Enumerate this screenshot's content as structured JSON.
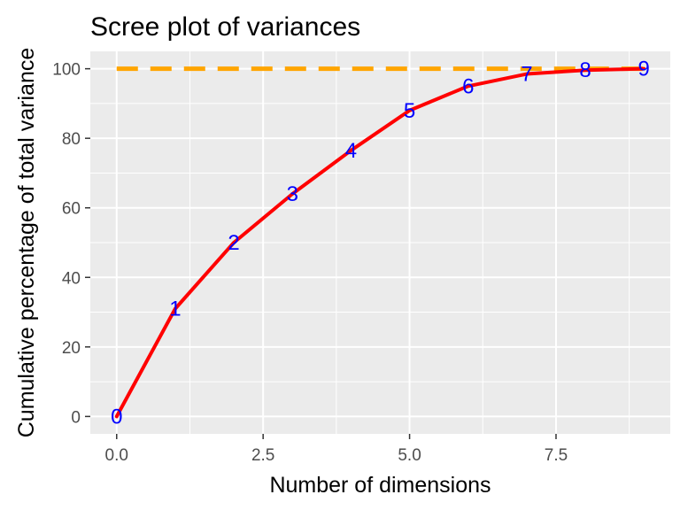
{
  "chart_data": {
    "type": "line",
    "title": "Scree plot of variances",
    "xlabel": "Number of dimensions",
    "ylabel": "Cumulative percentage of total variance",
    "xlim": [
      -0.45,
      9.45
    ],
    "ylim": [
      -5,
      105
    ],
    "x_ticks": [
      0,
      2.5,
      5,
      7.5
    ],
    "x_tick_labels": [
      "0.0",
      "2.5",
      "5.0",
      "7.5"
    ],
    "y_ticks": [
      0,
      20,
      40,
      60,
      80,
      100
    ],
    "y_tick_labels": [
      "0",
      "20",
      "40",
      "60",
      "80",
      "100"
    ],
    "grid": true,
    "panel_background": "#ebebeb",
    "series": [
      {
        "x": [
          0,
          1,
          2,
          3,
          4,
          5,
          6,
          7,
          8,
          9
        ],
        "y": [
          0,
          31,
          50,
          64,
          76.5,
          88,
          95,
          98.5,
          99.6,
          100
        ],
        "labels": [
          "0",
          "1",
          "2",
          "3",
          "4",
          "5",
          "6",
          "7",
          "8",
          "9"
        ],
        "color": "#ff0000",
        "label_color": "#0000ff"
      }
    ],
    "reference_line": {
      "y": 100,
      "color": "#ffa500",
      "style": "dashed"
    }
  }
}
